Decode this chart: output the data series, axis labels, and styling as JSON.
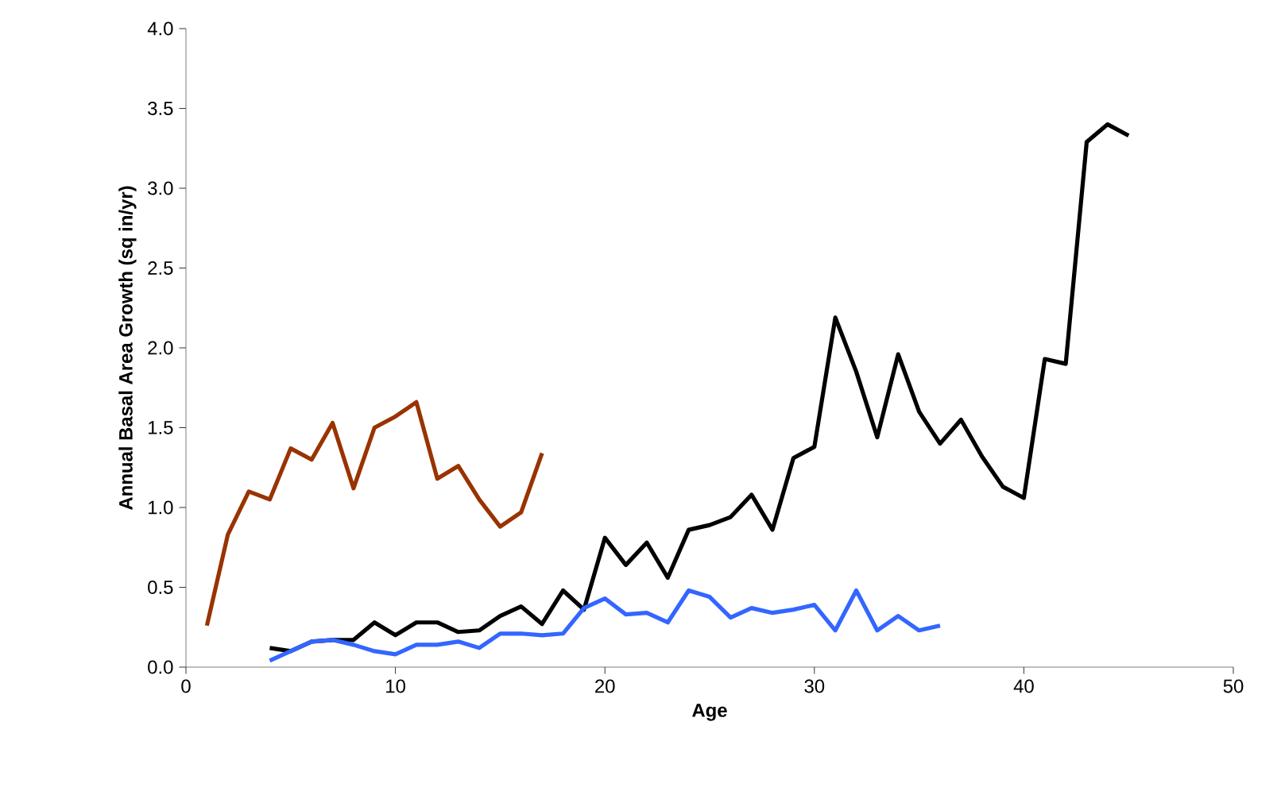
{
  "chart_data": {
    "type": "line",
    "xlabel": "Age",
    "ylabel": "Annual Basal Area Growth (sq in/yr)",
    "xlim": [
      0,
      50
    ],
    "xticks": [
      0,
      10,
      20,
      30,
      40,
      50
    ],
    "ylim": [
      0,
      4
    ],
    "yticks": [
      {
        "value": 0,
        "label": "0.0"
      },
      {
        "value": 0.5,
        "label": "0.5"
      },
      {
        "value": 1,
        "label": "1.0"
      },
      {
        "value": 1.5,
        "label": "1.5"
      },
      {
        "value": 2,
        "label": "2.0"
      },
      {
        "value": 2.5,
        "label": "2.5"
      },
      {
        "value": 3,
        "label": "3.0"
      },
      {
        "value": 3.5,
        "label": "3.5"
      },
      {
        "value": 4,
        "label": "4.0"
      }
    ],
    "grid": false,
    "marker": "none",
    "line_style": "solid",
    "series": [
      {
        "color": "#993300",
        "x": [
          1,
          2,
          3,
          4,
          5,
          6,
          7,
          8,
          9,
          10,
          11,
          12,
          13,
          14,
          15,
          16,
          17
        ],
        "values": [
          0.26,
          0.83,
          1.1,
          1.05,
          1.37,
          1.3,
          1.53,
          1.12,
          1.5,
          1.57,
          1.66,
          1.18,
          1.26,
          1.05,
          0.88,
          0.97,
          1.34
        ]
      },
      {
        "color": "#000000",
        "x": [
          4,
          5,
          6,
          7,
          8,
          9,
          10,
          11,
          12,
          13,
          14,
          15,
          16,
          17,
          18,
          19,
          20,
          21,
          22,
          23,
          24,
          25,
          26,
          27,
          28,
          29,
          30,
          31,
          32,
          33,
          34,
          35,
          36,
          37,
          38,
          39,
          40,
          41,
          42,
          43,
          44,
          45
        ],
        "values": [
          0.12,
          0.1,
          0.16,
          0.17,
          0.17,
          0.28,
          0.2,
          0.28,
          0.28,
          0.22,
          0.23,
          0.32,
          0.38,
          0.27,
          0.48,
          0.36,
          0.81,
          0.64,
          0.78,
          0.56,
          0.86,
          0.89,
          0.94,
          1.08,
          0.86,
          1.31,
          1.38,
          2.19,
          1.85,
          1.44,
          1.96,
          1.6,
          1.4,
          1.55,
          1.32,
          1.13,
          1.06,
          1.93,
          1.9,
          3.29,
          3.4,
          3.33
        ]
      },
      {
        "color": "#3366ff",
        "x": [
          4,
          5,
          6,
          7,
          8,
          9,
          10,
          11,
          12,
          13,
          14,
          15,
          16,
          17,
          18,
          19,
          20,
          21,
          22,
          23,
          24,
          25,
          26,
          27,
          28,
          29,
          30,
          31,
          32,
          33,
          34,
          35,
          36
        ],
        "values": [
          0.04,
          0.1,
          0.16,
          0.17,
          0.14,
          0.1,
          0.08,
          0.14,
          0.14,
          0.16,
          0.12,
          0.21,
          0.21,
          0.2,
          0.21,
          0.37,
          0.43,
          0.33,
          0.34,
          0.28,
          0.48,
          0.44,
          0.31,
          0.37,
          0.34,
          0.36,
          0.39,
          0.23,
          0.48,
          0.23,
          0.32,
          0.23,
          0.26
        ]
      }
    ]
  }
}
